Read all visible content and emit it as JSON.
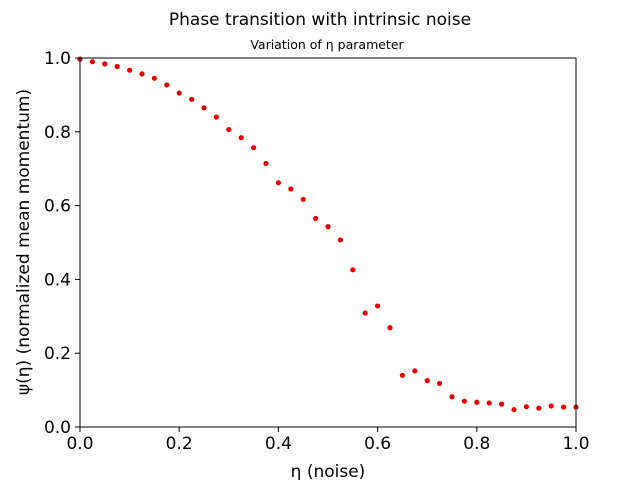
{
  "chart_data": {
    "type": "scatter",
    "title": "Phase transition with intrinsic noise",
    "subtitle": "Variation of η parameter",
    "xlabel": "η (noise)",
    "ylabel": "ψ(η) (normalized mean momentum)",
    "xlim": [
      0.0,
      1.0
    ],
    "ylim": [
      0.0,
      1.0
    ],
    "xticks": [
      "0.0",
      "0.2",
      "0.4",
      "0.6",
      "0.8",
      "1.0"
    ],
    "yticks": [
      "0.0",
      "0.2",
      "0.4",
      "0.6",
      "0.8",
      "1.0"
    ],
    "grid": false,
    "marker_color": "#e60000",
    "x": [
      0.0,
      0.025,
      0.05,
      0.075,
      0.1,
      0.125,
      0.15,
      0.175,
      0.2,
      0.225,
      0.25,
      0.275,
      0.3,
      0.325,
      0.35,
      0.375,
      0.4,
      0.425,
      0.45,
      0.475,
      0.5,
      0.525,
      0.55,
      0.575,
      0.6,
      0.625,
      0.65,
      0.675,
      0.7,
      0.725,
      0.75,
      0.775,
      0.8,
      0.825,
      0.85,
      0.875,
      0.9,
      0.925,
      0.95,
      0.975,
      1.0
    ],
    "y": [
      0.997,
      0.99,
      0.984,
      0.977,
      0.967,
      0.957,
      0.945,
      0.927,
      0.905,
      0.888,
      0.865,
      0.84,
      0.806,
      0.784,
      0.757,
      0.714,
      0.662,
      0.645,
      0.617,
      0.565,
      0.543,
      0.507,
      0.426,
      0.309,
      0.328,
      0.269,
      0.14,
      0.152,
      0.126,
      0.118,
      0.082,
      0.07,
      0.067,
      0.065,
      0.062,
      0.047,
      0.055,
      0.051,
      0.057,
      0.054,
      0.054
    ]
  }
}
